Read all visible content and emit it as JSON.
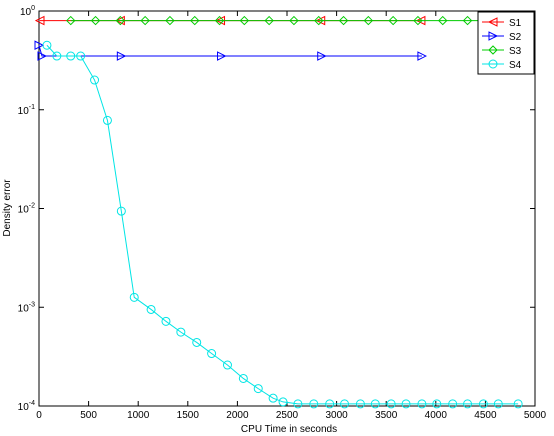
{
  "chart_data": {
    "type": "line",
    "xlabel": "CPU Time in seconds",
    "ylabel": "Density error",
    "log_y": true,
    "legend": "upper right",
    "xlim": [
      0,
      5000
    ],
    "xticks": [
      0,
      500,
      1000,
      1500,
      2000,
      2500,
      3000,
      3500,
      4000,
      4500,
      5000
    ],
    "ylim": [
      0.0001,
      1
    ],
    "yticks": [
      {
        "value": 0.0001,
        "label": "10^-4"
      },
      {
        "value": 0.001,
        "label": "10^-3"
      },
      {
        "value": 0.01,
        "label": "10^-2"
      },
      {
        "value": 0.1,
        "label": "10^-1"
      },
      {
        "value": 1,
        "label": "10^0"
      }
    ],
    "series": [
      {
        "name": "S1",
        "color": "#ff0000",
        "marker": "triangle-left",
        "x": [
          10,
          820,
          1830,
          2840,
          3850
        ],
        "values": [
          0.8,
          0.8,
          0.8,
          0.8,
          0.8
        ]
      },
      {
        "name": "S2",
        "color": "#0000ff",
        "marker": "triangle-right",
        "x": [
          0,
          30,
          830,
          1840,
          2850,
          3860
        ],
        "values": [
          0.45,
          0.35,
          0.35,
          0.35,
          0.35,
          0.35
        ]
      },
      {
        "name": "S3",
        "color": "#00cc00",
        "marker": "diamond",
        "x": [
          320,
          570,
          820,
          1070,
          1320,
          1570,
          1820,
          2070,
          2320,
          2570,
          2820,
          3070,
          3320,
          3570,
          3820,
          4070,
          4320,
          4570,
          4820
        ],
        "values": [
          0.8,
          0.8,
          0.8,
          0.8,
          0.8,
          0.8,
          0.8,
          0.8,
          0.8,
          0.8,
          0.8,
          0.8,
          0.8,
          0.8,
          0.8,
          0.8,
          0.8,
          0.8,
          0.8
        ]
      },
      {
        "name": "S4",
        "color": "#00e5e5",
        "marker": "circle",
        "x": [
          80,
          180,
          320,
          420,
          560,
          690,
          830,
          960,
          1130,
          1280,
          1430,
          1590,
          1740,
          1900,
          2060,
          2210,
          2360,
          2460,
          2610,
          2770,
          2930,
          3080,
          3240,
          3390,
          3550,
          3700,
          3860,
          4010,
          4170,
          4320,
          4480,
          4630,
          4830
        ],
        "values": [
          0.45,
          0.35,
          0.35,
          0.35,
          0.2,
          0.078,
          0.0094,
          0.00126,
          0.00095,
          0.00072,
          0.00056,
          0.00044,
          0.00034,
          0.00026,
          0.00019,
          0.00015,
          0.00012,
          0.00011,
          0.000105,
          0.000105,
          0.000105,
          0.000105,
          0.000105,
          0.000105,
          0.000105,
          0.000105,
          0.000105,
          0.000105,
          0.000105,
          0.000105,
          0.000105,
          0.000105,
          0.000105
        ]
      }
    ]
  }
}
